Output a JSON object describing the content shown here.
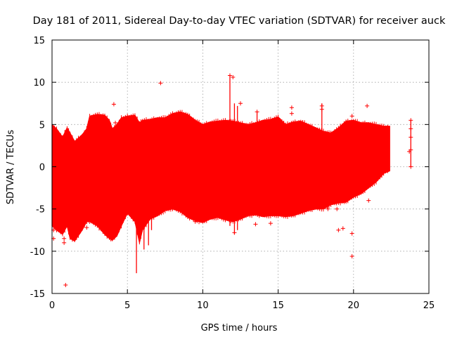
{
  "chart_data": {
    "type": "scatter",
    "title": "Day 181 of 2011, Sidereal Day-to-day VTEC variation (SDTVAR) for receiver auck",
    "xlabel": "GPS time / hours",
    "ylabel": "SDTVAR / TECUs",
    "xlim": [
      0,
      25
    ],
    "ylim": [
      -15,
      15
    ],
    "x_ticks": [
      0,
      5,
      10,
      15,
      20,
      25
    ],
    "y_ticks": [
      -15,
      -10,
      -5,
      0,
      5,
      10,
      15
    ],
    "x_tick_labels": [
      "0",
      "5",
      "10",
      "15",
      "20",
      "25"
    ],
    "y_tick_labels": [
      "-15",
      "-10",
      "-5",
      "0",
      "5",
      "10",
      "15"
    ],
    "grid": true,
    "marker": "+",
    "series": [
      {
        "name": "SDTVAR",
        "color": "#ff0000",
        "envelope": {
          "x": [
            0.0,
            0.3,
            0.7,
            1.0,
            1.2,
            1.5,
            2.0,
            2.3,
            2.5,
            3.0,
            3.5,
            3.8,
            4.0,
            4.3,
            4.6,
            5.0,
            5.5,
            5.8,
            6.0,
            6.5,
            7.0,
            7.5,
            8.0,
            8.5,
            9.0,
            9.5,
            10.0,
            10.5,
            11.0,
            11.5,
            12.0,
            12.5,
            13.0,
            13.5,
            14.0,
            14.5,
            15.0,
            15.5,
            16.0,
            16.5,
            17.0,
            17.5,
            18.0,
            18.5,
            19.0,
            19.5,
            20.0,
            20.5,
            21.0,
            21.5,
            22.0,
            22.4
          ],
          "upper": [
            5.0,
            4.5,
            3.5,
            4.6,
            4.0,
            3.0,
            3.8,
            4.5,
            6.0,
            6.2,
            6.1,
            5.5,
            4.5,
            5.0,
            5.8,
            6.0,
            6.1,
            5.2,
            5.5,
            5.6,
            5.8,
            5.8,
            6.3,
            6.5,
            6.2,
            5.5,
            5.0,
            5.3,
            5.4,
            5.5,
            5.4,
            5.2,
            5.0,
            5.2,
            5.5,
            5.6,
            5.9,
            5.0,
            5.3,
            5.4,
            5.0,
            4.6,
            4.2,
            4.0,
            4.6,
            5.4,
            5.5,
            5.2,
            5.2,
            5.0,
            4.8,
            4.8
          ],
          "lower": [
            -7.0,
            -7.5,
            -8.0,
            -7.0,
            -8.5,
            -8.8,
            -7.5,
            -6.5,
            -6.5,
            -7.0,
            -8.0,
            -8.5,
            -8.7,
            -8.2,
            -7.0,
            -5.5,
            -6.5,
            -9.0,
            -7.5,
            -6.2,
            -5.8,
            -5.2,
            -5.0,
            -5.3,
            -6.0,
            -6.4,
            -6.6,
            -6.2,
            -6.0,
            -6.3,
            -6.5,
            -6.2,
            -5.8,
            -5.7,
            -5.9,
            -5.8,
            -5.8,
            -5.9,
            -5.8,
            -5.5,
            -5.2,
            -5.0,
            -5.0,
            -4.5,
            -4.3,
            -4.2,
            -3.6,
            -3.2,
            -2.5,
            -1.8,
            -0.8,
            -0.5
          ]
        },
        "spikes": [
          {
            "x": 5.6,
            "lo": -12.6,
            "hi": -5.0
          },
          {
            "x": 6.1,
            "lo": -9.8,
            "hi": -4.0
          },
          {
            "x": 6.4,
            "lo": -9.3,
            "hi": -4.0
          },
          {
            "x": 6.6,
            "lo": -7.5,
            "hi": -5.0
          },
          {
            "x": 11.8,
            "lo": -7.0,
            "hi": 10.8
          },
          {
            "x": 12.1,
            "lo": -8.0,
            "hi": 7.5
          },
          {
            "x": 12.3,
            "lo": -7.5,
            "hi": 7.2
          },
          {
            "x": 13.6,
            "lo": 0.0,
            "hi": 6.5
          },
          {
            "x": 17.9,
            "lo": 0.0,
            "hi": 7.5
          },
          {
            "x": 23.8,
            "lo": 0.0,
            "hi": 5.5
          }
        ],
        "outliers": [
          [
            0.9,
            -14.0
          ],
          [
            4.1,
            7.4
          ],
          [
            4.2,
            5.2
          ],
          [
            7.2,
            9.9
          ],
          [
            11.8,
            10.8
          ],
          [
            12.0,
            10.6
          ],
          [
            12.5,
            7.5
          ],
          [
            13.6,
            6.5
          ],
          [
            13.5,
            -6.8
          ],
          [
            15.9,
            7.0
          ],
          [
            15.9,
            6.3
          ],
          [
            17.9,
            7.2
          ],
          [
            17.9,
            6.8
          ],
          [
            18.3,
            -4.5
          ],
          [
            18.3,
            -5.0
          ],
          [
            18.9,
            -5.0
          ],
          [
            19.0,
            -7.5
          ],
          [
            19.3,
            -7.3
          ],
          [
            19.9,
            6.0
          ],
          [
            19.9,
            -7.9
          ],
          [
            19.9,
            -10.6
          ],
          [
            20.9,
            7.2
          ],
          [
            21.0,
            -4.0
          ],
          [
            23.8,
            5.5
          ],
          [
            23.8,
            4.5
          ],
          [
            23.8,
            3.5
          ],
          [
            23.8,
            2.0
          ],
          [
            23.7,
            1.8
          ],
          [
            23.8,
            0.0
          ],
          [
            0.1,
            -7.5
          ],
          [
            0.1,
            -8.5
          ],
          [
            0.8,
            -8.5
          ],
          [
            0.8,
            -9.0
          ],
          [
            1.5,
            -7.5
          ],
          [
            2.3,
            -7.2
          ],
          [
            5.0,
            -5.5
          ],
          [
            9.5,
            -6.5
          ],
          [
            12.1,
            -7.8
          ],
          [
            14.5,
            -6.7
          ]
        ]
      }
    ]
  }
}
